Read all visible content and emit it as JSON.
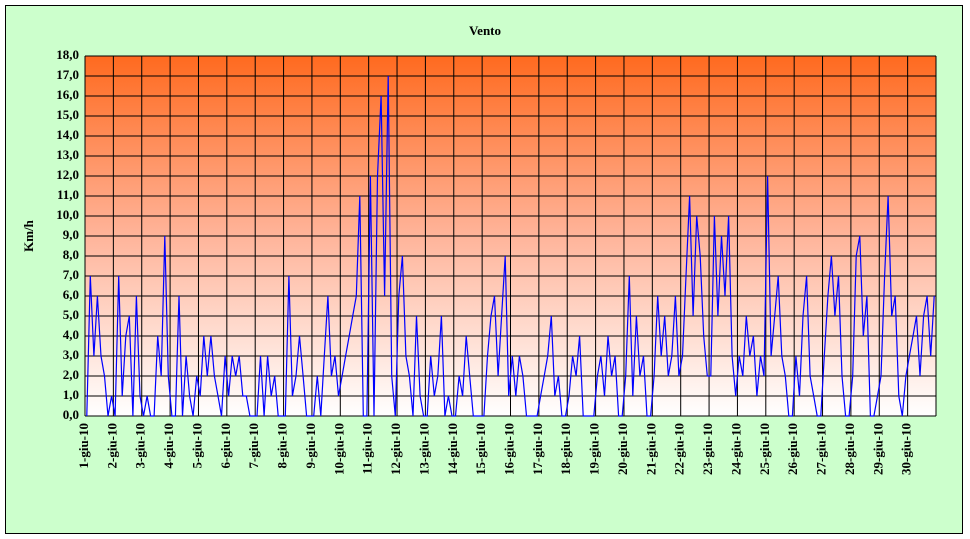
{
  "chart_data": {
    "type": "line",
    "title": "Vento",
    "y_label": "Km/h",
    "categories": [
      "1-giu-10",
      null,
      null,
      null,
      null,
      null,
      null,
      null,
      "2-giu-10",
      null,
      null,
      null,
      null,
      null,
      null,
      null,
      "3-giu-10",
      null,
      null,
      null,
      null,
      null,
      null,
      null,
      "4-giu-10",
      null,
      null,
      null,
      null,
      null,
      null,
      null,
      "5-giu-10",
      null,
      null,
      null,
      null,
      null,
      null,
      null,
      "6-giu-10",
      null,
      null,
      null,
      null,
      null,
      null,
      null,
      "7-giu-10",
      null,
      null,
      null,
      null,
      null,
      null,
      null,
      "8-giu-10",
      null,
      null,
      null,
      null,
      null,
      null,
      null,
      "9-giu-10",
      null,
      null,
      null,
      null,
      null,
      null,
      null,
      "10-giu-10",
      null,
      null,
      null,
      null,
      null,
      null,
      null,
      "11-giu-10",
      null,
      null,
      null,
      null,
      null,
      null,
      null,
      "12-giu-10",
      null,
      null,
      null,
      null,
      null,
      null,
      null,
      "13-giu-10",
      null,
      null,
      null,
      null,
      null,
      null,
      null,
      "14-giu-10",
      null,
      null,
      null,
      null,
      null,
      null,
      null,
      "15-giu-10",
      null,
      null,
      null,
      null,
      null,
      null,
      null,
      "16-giu-10",
      null,
      null,
      null,
      null,
      null,
      null,
      null,
      "17-giu-10",
      null,
      null,
      null,
      null,
      null,
      null,
      null,
      "18-giu-10",
      null,
      null,
      null,
      null,
      null,
      null,
      null,
      "19-giu-10",
      null,
      null,
      null,
      null,
      null,
      null,
      null,
      "20-giu-10",
      null,
      null,
      null,
      null,
      null,
      null,
      null,
      "21-giu-10",
      null,
      null,
      null,
      null,
      null,
      null,
      null,
      "22-giu-10",
      null,
      null,
      null,
      null,
      null,
      null,
      null,
      "23-giu-10",
      null,
      null,
      null,
      null,
      null,
      null,
      null,
      "24-giu-10",
      null,
      null,
      null,
      null,
      null,
      null,
      null,
      "25-giu-10",
      null,
      null,
      null,
      null,
      null,
      null,
      null,
      "26-giu-10",
      null,
      null,
      null,
      null,
      null,
      null,
      null,
      "27-giu-10",
      null,
      null,
      null,
      null,
      null,
      null,
      null,
      "28-giu-10",
      null,
      null,
      null,
      null,
      null,
      null,
      null,
      "29-giu-10",
      null,
      null,
      null,
      null,
      null,
      null,
      null,
      "30-giu-10",
      null,
      null,
      null,
      null,
      null,
      null,
      null
    ],
    "values": [
      0,
      7,
      3,
      6,
      3,
      2,
      0,
      1,
      0,
      7,
      1,
      4,
      5,
      0,
      6,
      1,
      0,
      1,
      0,
      0,
      4,
      2,
      9,
      2,
      0,
      0,
      6,
      0,
      3,
      1,
      0,
      2,
      1,
      4,
      2,
      4,
      2,
      1,
      0,
      3,
      1,
      3,
      2,
      3,
      1,
      1,
      0,
      0,
      0,
      3,
      0,
      3,
      1,
      2,
      0,
      0,
      0,
      7,
      1,
      2,
      4,
      2,
      0,
      0,
      0,
      2,
      0,
      3,
      6,
      2,
      3,
      1,
      2,
      3,
      4,
      5,
      6,
      11,
      0,
      0,
      12,
      0,
      12,
      16,
      6,
      17,
      2,
      0,
      6,
      8,
      3,
      2,
      0,
      5,
      1,
      0,
      0,
      3,
      1,
      2,
      5,
      0,
      1,
      0,
      0,
      2,
      1,
      4,
      2,
      0,
      0,
      0,
      0,
      3,
      5,
      6,
      2,
      5,
      8,
      1,
      3,
      1,
      3,
      2,
      0,
      0,
      0,
      0,
      1,
      2,
      3,
      5,
      1,
      2,
      0,
      0,
      1,
      3,
      2,
      4,
      0,
      0,
      0,
      0,
      2,
      3,
      1,
      4,
      2,
      3,
      0,
      0,
      2,
      7,
      1,
      5,
      2,
      3,
      0,
      0,
      2,
      6,
      3,
      5,
      2,
      3,
      6,
      2,
      3,
      7,
      11,
      5,
      10,
      8,
      4,
      2,
      2,
      10,
      5,
      9,
      6,
      10,
      3,
      1,
      3,
      2,
      5,
      3,
      4,
      1,
      3,
      2,
      12,
      3,
      5,
      7,
      3,
      2,
      0,
      0,
      3,
      1,
      5,
      7,
      2,
      1,
      0,
      0,
      3,
      6,
      8,
      5,
      7,
      2,
      0,
      0,
      2,
      8,
      9,
      4,
      6,
      0,
      0,
      1,
      2,
      7,
      11,
      5,
      6,
      1,
      0,
      2,
      3,
      4,
      5,
      2,
      5,
      6,
      3,
      6
    ],
    "color": "#0000ff",
    "ylim": [
      0,
      18
    ],
    "yticks": [
      {
        "value": 0,
        "label": "0,0"
      },
      {
        "value": 1,
        "label": "1,0"
      },
      {
        "value": 2,
        "label": "2,0"
      },
      {
        "value": 3,
        "label": "3,0"
      },
      {
        "value": 4,
        "label": "4,0"
      },
      {
        "value": 5,
        "label": "5,0"
      },
      {
        "value": 6,
        "label": "6,0"
      },
      {
        "value": 7,
        "label": "7,0"
      },
      {
        "value": 8,
        "label": "8,0"
      },
      {
        "value": 9,
        "label": "9,0"
      },
      {
        "value": 10,
        "label": "10,0"
      },
      {
        "value": 11,
        "label": "11,0"
      },
      {
        "value": 12,
        "label": "12,0"
      },
      {
        "value": 13,
        "label": "13,0"
      },
      {
        "value": 14,
        "label": "14,0"
      },
      {
        "value": 15,
        "label": "15,0"
      },
      {
        "value": 16,
        "label": "16,0"
      },
      {
        "value": 17,
        "label": "17,0"
      },
      {
        "value": 18,
        "label": "18,0"
      }
    ],
    "grid": true
  }
}
